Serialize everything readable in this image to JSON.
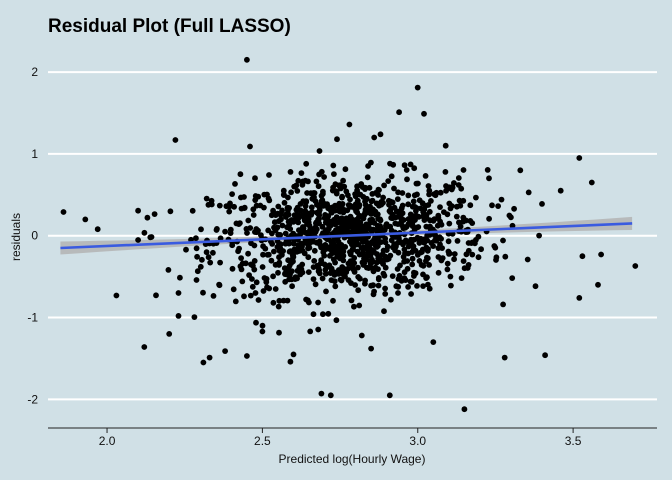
{
  "chart_data": {
    "type": "scatter",
    "title": "Residual Plot (Full LASSO)",
    "xlabel": "Predicted log(Hourly Wage)",
    "ylabel": "residuals",
    "xlim": [
      1.81,
      3.77
    ],
    "ylim": [
      -2.35,
      2.27
    ],
    "x_ticks": [
      "2.0",
      "2.5",
      "3.0",
      "3.5"
    ],
    "y_ticks": [
      "2",
      "1",
      "0",
      "-1",
      "-2"
    ],
    "grid": "horizontal",
    "background_color": "#d0e0e6",
    "point_color": "#000000",
    "fit_line": {
      "method": "linear",
      "color": "#3a5be0",
      "band_color": "#b3b3b3",
      "x": [
        1.85,
        3.69
      ],
      "y": [
        -0.15,
        0.15
      ],
      "band_halfwidth": [
        0.08,
        0.03,
        0.08
      ]
    },
    "outliers": [
      {
        "x": 1.86,
        "y": 0.29
      },
      {
        "x": 1.93,
        "y": 0.2
      },
      {
        "x": 1.97,
        "y": 0.08
      },
      {
        "x": 2.03,
        "y": -0.73
      },
      {
        "x": 2.12,
        "y": -1.36
      },
      {
        "x": 2.13,
        "y": 0.22
      },
      {
        "x": 2.2,
        "y": -1.2
      },
      {
        "x": 2.22,
        "y": 1.17
      },
      {
        "x": 2.23,
        "y": -0.7
      },
      {
        "x": 2.23,
        "y": -0.98
      },
      {
        "x": 2.31,
        "y": -1.55
      },
      {
        "x": 2.33,
        "y": -1.49
      },
      {
        "x": 2.38,
        "y": -1.41
      },
      {
        "x": 2.45,
        "y": 2.15
      },
      {
        "x": 2.45,
        "y": -1.47
      },
      {
        "x": 2.46,
        "y": 1.09
      },
      {
        "x": 2.5,
        "y": -1.17
      },
      {
        "x": 2.59,
        "y": -1.54
      },
      {
        "x": 2.6,
        "y": -1.45
      },
      {
        "x": 2.69,
        "y": -1.93
      },
      {
        "x": 2.72,
        "y": -1.95
      },
      {
        "x": 2.74,
        "y": 1.18
      },
      {
        "x": 2.78,
        "y": 1.36
      },
      {
        "x": 2.82,
        "y": -1.22
      },
      {
        "x": 2.85,
        "y": -1.38
      },
      {
        "x": 2.86,
        "y": 1.2
      },
      {
        "x": 2.88,
        "y": 1.24
      },
      {
        "x": 2.91,
        "y": -1.95
      },
      {
        "x": 2.94,
        "y": 1.51
      },
      {
        "x": 3.0,
        "y": 1.81
      },
      {
        "x": 3.02,
        "y": 1.49
      },
      {
        "x": 3.05,
        "y": -1.3
      },
      {
        "x": 3.09,
        "y": 1.1
      },
      {
        "x": 3.15,
        "y": -2.12
      },
      {
        "x": 3.28,
        "y": -1.49
      },
      {
        "x": 3.33,
        "y": 0.8
      },
      {
        "x": 3.41,
        "y": -1.46
      },
      {
        "x": 3.46,
        "y": 0.55
      },
      {
        "x": 3.52,
        "y": 0.95
      },
      {
        "x": 3.52,
        "y": -0.76
      },
      {
        "x": 3.53,
        "y": -0.25
      },
      {
        "x": 3.56,
        "y": 0.65
      },
      {
        "x": 3.58,
        "y": -0.6
      },
      {
        "x": 3.59,
        "y": -0.23
      },
      {
        "x": 3.7,
        "y": -0.37
      }
    ],
    "cloud": {
      "point_count": 1150,
      "x_mean": 2.78,
      "x_sd": 0.22,
      "x_range": [
        2.1,
        3.4
      ],
      "residual_sd": 0.36,
      "residual_range": [
        -1.15,
        1.05
      ]
    }
  }
}
